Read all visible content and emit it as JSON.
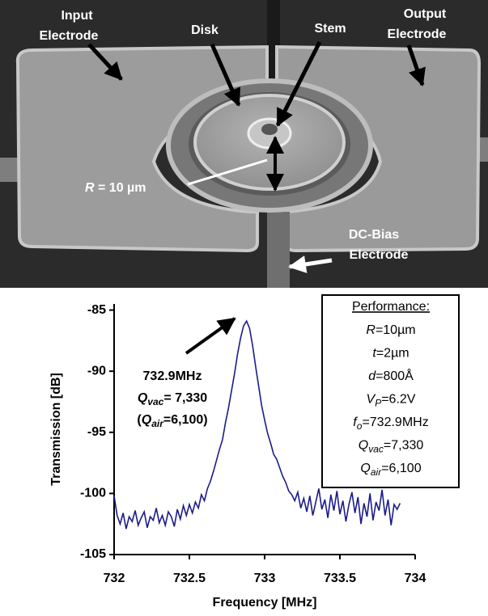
{
  "image": {
    "labels": {
      "input_electrode": [
        "Input",
        "Electrode"
      ],
      "disk": "Disk",
      "stem": "Stem",
      "output_electrode": [
        "Output",
        "Electrode"
      ],
      "radius": {
        "symbol": "R",
        "rest": " = 10 µm"
      },
      "dc_bias_electrode": [
        "DC-Bias",
        "Electrode"
      ]
    }
  },
  "chart_data": {
    "type": "line",
    "x_label": "Frequency [MHz]",
    "y_label": "Transmission [dB]",
    "xlim": [
      732,
      734
    ],
    "xticks": [
      732,
      732.5,
      733,
      733.5,
      734
    ],
    "ylim": [
      -105,
      -84.5
    ],
    "yticks": [
      -105,
      -100,
      -95,
      -90,
      -85
    ],
    "color": "#1c1c8a",
    "x": [
      732.0,
      732.02,
      732.04,
      732.06,
      732.08,
      732.1,
      732.12,
      732.14,
      732.16,
      732.18,
      732.2,
      732.22,
      732.24,
      732.26,
      732.28,
      732.3,
      732.32,
      732.34,
      732.36,
      732.38,
      732.4,
      732.42,
      732.44,
      732.46,
      732.48,
      732.5,
      732.52,
      732.54,
      732.56,
      732.58,
      732.6,
      732.62,
      732.64,
      732.66,
      732.68,
      732.7,
      732.72,
      732.74,
      732.76,
      732.78,
      732.8,
      732.82,
      732.84,
      732.86,
      732.88,
      732.9,
      732.92,
      732.94,
      732.96,
      732.98,
      733.0,
      733.02,
      733.04,
      733.06,
      733.08,
      733.1,
      733.12,
      733.14,
      733.16,
      733.18,
      733.2,
      733.22,
      733.24,
      733.26,
      733.28,
      733.3,
      733.32,
      733.34,
      733.36,
      733.38,
      733.4,
      733.42,
      733.44,
      733.46,
      733.48,
      733.5,
      733.52,
      733.54,
      733.56,
      733.58,
      733.6,
      733.62,
      733.64,
      733.66,
      733.68,
      733.7,
      733.72,
      733.74,
      733.76,
      733.78,
      733.8,
      733.82,
      733.84,
      733.86,
      733.88,
      733.9
    ],
    "values": [
      -100.2,
      -101.8,
      -102.5,
      -101.6,
      -102.9,
      -101.9,
      -102.3,
      -101.4,
      -102.6,
      -102.0,
      -101.5,
      -102.8,
      -101.9,
      -102.2,
      -101.2,
      -102.4,
      -101.8,
      -102.6,
      -101.5,
      -101.9,
      -102.7,
      -101.3,
      -102.1,
      -101.0,
      -101.8,
      -100.9,
      -101.6,
      -100.7,
      -101.2,
      -100.1,
      -100.6,
      -99.6,
      -99.0,
      -98.2,
      -97.3,
      -96.4,
      -95.6,
      -94.2,
      -93.0,
      -91.6,
      -90.2,
      -88.6,
      -87.3,
      -86.3,
      -85.9,
      -86.5,
      -87.9,
      -89.6,
      -91.2,
      -92.8,
      -94.0,
      -95.1,
      -95.9,
      -96.8,
      -97.2,
      -97.9,
      -98.6,
      -99.1,
      -99.8,
      -100.1,
      -100.6,
      -99.9,
      -101.2,
      -100.4,
      -101.5,
      -100.2,
      -101.8,
      -100.7,
      -99.6,
      -101.3,
      -100.5,
      -102.0,
      -100.1,
      -101.4,
      -99.8,
      -101.7,
      -100.6,
      -102.3,
      -100.9,
      -99.9,
      -101.6,
      -100.3,
      -102.5,
      -100.8,
      -101.9,
      -100.0,
      -102.2,
      -100.7,
      -101.4,
      -99.7,
      -101.8,
      -100.5,
      -102.6,
      -100.9,
      -101.3,
      -100.8
    ],
    "annotation": [
      "732.9MHz",
      {
        "symbol": "Q",
        "subscript": "vac",
        "rest": "= 7,330"
      },
      {
        "prefix": "(",
        "symbol": "Q",
        "subscript": "air",
        "rest": "=6,100)"
      }
    ],
    "performance": {
      "heading": "Performance:",
      "lines": [
        {
          "symbol": "R",
          "rest": "=10µm"
        },
        {
          "symbol": "t",
          "rest": "=2µm"
        },
        {
          "symbol": "d",
          "rest": "=800Å"
        },
        {
          "symbol": "V",
          "subscript": "P",
          "rest": "=6.2V"
        },
        {
          "symbol": "f",
          "subscript": "o",
          "rest": "=732.9MHz"
        },
        {
          "symbol": "Q",
          "subscript": "vac",
          "rest": "=7,330"
        },
        {
          "symbol": "Q",
          "subscript": "air",
          "rest": "=6,100"
        }
      ]
    }
  }
}
